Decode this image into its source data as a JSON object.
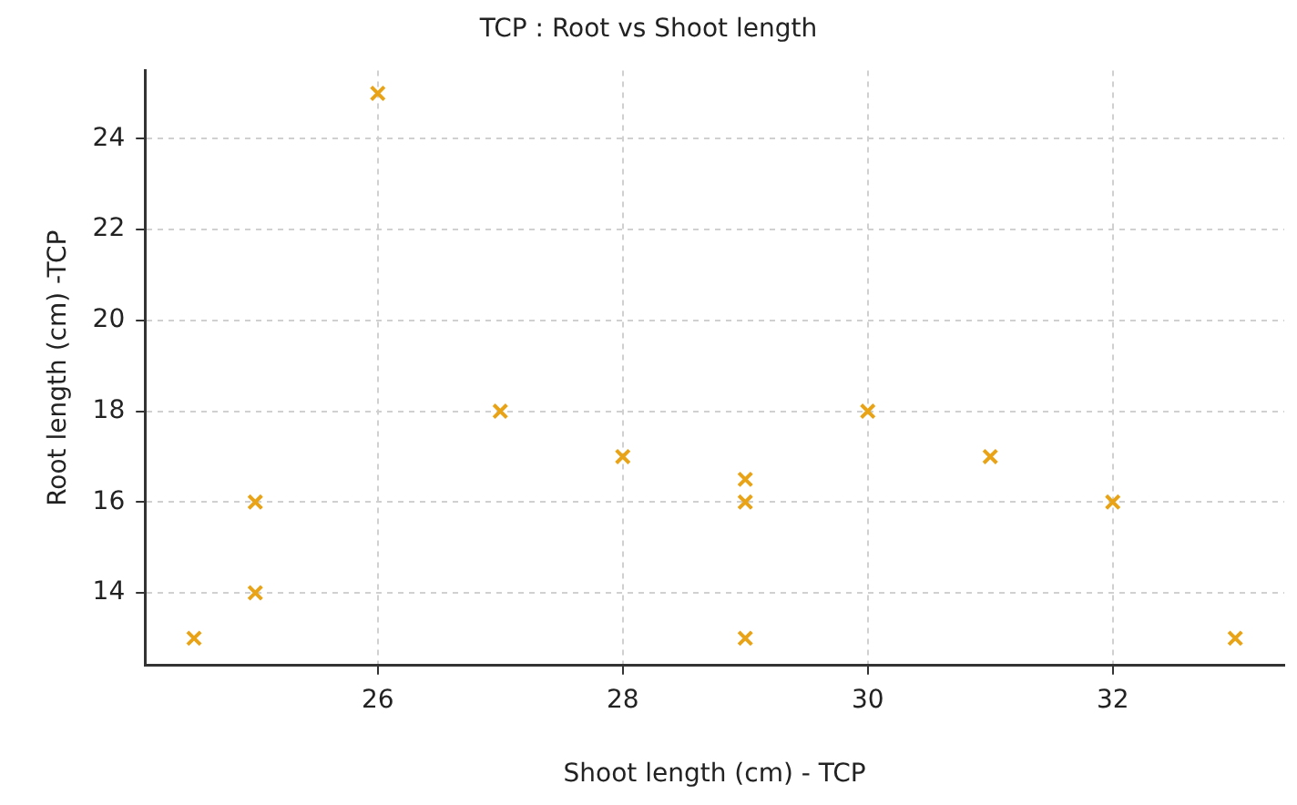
{
  "chart_data": {
    "type": "scatter",
    "title": "TCP : Root vs Shoot length",
    "xlabel": "Shoot length (cm) - TCP",
    "ylabel": "Root length (cm) -TCP",
    "x": [
      24.5,
      25,
      25,
      26,
      27,
      28,
      29,
      29,
      29,
      30,
      31,
      32,
      33
    ],
    "series": [
      {
        "color": "#e8a317",
        "values": [
          13,
          16,
          14,
          25,
          18,
          17,
          16.5,
          16,
          13,
          18,
          17,
          16,
          13
        ]
      }
    ],
    "marker": "cross",
    "grid": true,
    "legend": false,
    "xlim": [
      24.1,
      33.4
    ],
    "xticks": [
      26,
      28,
      30,
      32
    ],
    "ylim": [
      12.4,
      25.5
    ],
    "yticks": [
      14,
      16,
      18,
      20,
      22,
      24
    ]
  }
}
